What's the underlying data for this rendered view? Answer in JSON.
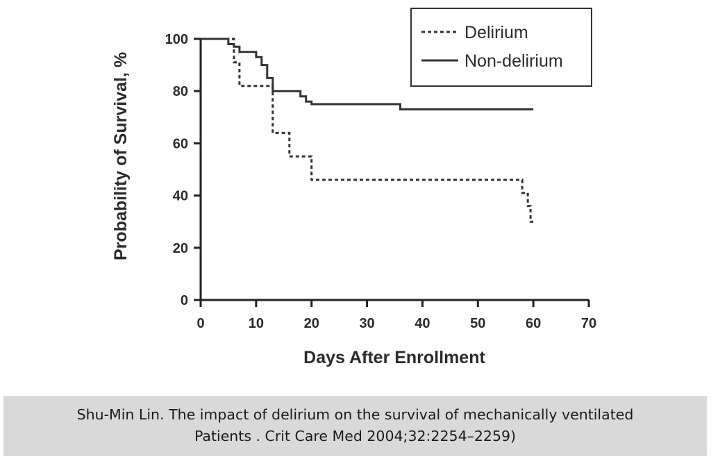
{
  "chart_data": {
    "type": "line",
    "step": true,
    "xlabel": "Days After Enrollment",
    "ylabel": "Probability of Survival, %",
    "xlim": [
      0,
      70
    ],
    "ylim": [
      0,
      100
    ],
    "xticks": [
      0,
      10,
      20,
      30,
      40,
      50,
      60,
      70
    ],
    "yticks": [
      0,
      20,
      40,
      60,
      80,
      100
    ],
    "grid": false,
    "legend_position": "top-right",
    "series": [
      {
        "name": "Delirium",
        "style": "dashed",
        "color": "#333333",
        "points": [
          [
            0,
            100
          ],
          [
            6,
            100
          ],
          [
            6,
            91
          ],
          [
            7,
            91
          ],
          [
            7,
            82
          ],
          [
            13,
            82
          ],
          [
            13,
            64
          ],
          [
            16,
            64
          ],
          [
            16,
            55
          ],
          [
            20,
            55
          ],
          [
            20,
            46
          ],
          [
            58,
            46
          ],
          [
            58,
            41
          ],
          [
            59,
            41
          ],
          [
            59,
            36
          ],
          [
            59.5,
            36
          ],
          [
            59.5,
            30
          ],
          [
            60,
            30
          ]
        ]
      },
      {
        "name": "Non-delirium",
        "style": "solid",
        "color": "#333333",
        "points": [
          [
            0,
            100
          ],
          [
            5,
            100
          ],
          [
            5,
            98
          ],
          [
            6,
            98
          ],
          [
            6,
            97
          ],
          [
            7,
            97
          ],
          [
            7,
            95
          ],
          [
            10,
            95
          ],
          [
            10,
            93
          ],
          [
            11,
            93
          ],
          [
            11,
            90
          ],
          [
            12,
            90
          ],
          [
            12,
            85
          ],
          [
            13,
            85
          ],
          [
            13,
            80
          ],
          [
            18,
            80
          ],
          [
            18,
            78
          ],
          [
            19,
            78
          ],
          [
            19,
            76
          ],
          [
            20,
            76
          ],
          [
            20,
            75
          ],
          [
            36,
            75
          ],
          [
            36,
            73
          ],
          [
            60,
            73
          ]
        ]
      }
    ]
  },
  "caption": {
    "line1": "Shu-Min Lin. The impact of delirium on the survival of mechanically ventilated",
    "line2": "Patients . Crit Care Med 2004;32:2254–2259)"
  }
}
